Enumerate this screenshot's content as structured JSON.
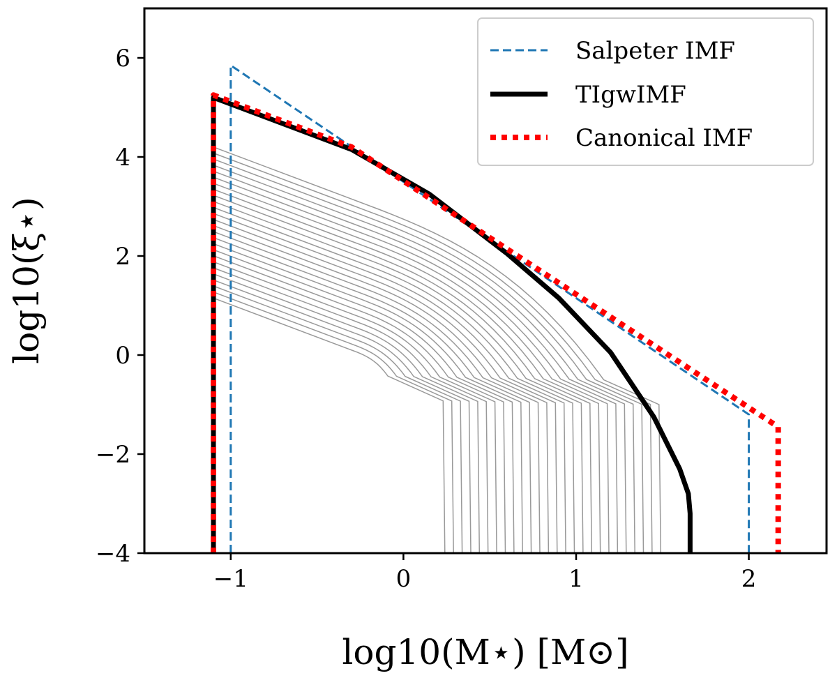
{
  "chart_data": {
    "type": "line",
    "xlabel": "log10(M⋆) [M⊙]",
    "ylabel": "log10(ξ⋆)",
    "xlim": [
      -1.5,
      2.45
    ],
    "ylim": [
      -4,
      7
    ],
    "xticks": [
      -1,
      0,
      1,
      2
    ],
    "yticks": [
      -4,
      -2,
      0,
      2,
      4,
      6
    ],
    "xtick_labels": [
      "−1",
      "0",
      "1",
      "2"
    ],
    "ytick_labels": [
      "−4",
      "−2",
      "0",
      "2",
      "4",
      "6"
    ],
    "legend_position": "top-right",
    "series": [
      {
        "name": "Salpeter IMF",
        "style": "dashed",
        "color": "#1f77b4",
        "x": [
          -1.0,
          -1.0,
          2.0,
          2.0
        ],
        "y": [
          -4.0,
          5.85,
          -1.2,
          -4.0
        ]
      },
      {
        "name": "TIgwIMF",
        "style": "solid",
        "color": "#000000",
        "x": [
          -1.1,
          -1.1,
          -0.3,
          0.15,
          0.3,
          0.6,
          0.9,
          1.2,
          1.45,
          1.6,
          1.65,
          1.66,
          1.66
        ],
        "y": [
          -4.0,
          5.2,
          4.15,
          3.25,
          2.85,
          2.05,
          1.15,
          0.05,
          -1.25,
          -2.3,
          -2.8,
          -3.2,
          -4.0
        ]
      },
      {
        "name": "Canonical IMF",
        "style": "dotted",
        "color": "#ff0000",
        "x": [
          -1.1,
          -1.1,
          -0.3,
          2.17,
          2.17
        ],
        "y": [
          -4.0,
          5.25,
          4.2,
          -1.45,
          -4.0
        ]
      }
    ],
    "grey_curves": {
      "color": "#999999",
      "count": 26,
      "y_start_range": [
        1.15,
        4.2
      ],
      "x_cutoff_range": [
        0.21,
        1.46
      ]
    }
  }
}
